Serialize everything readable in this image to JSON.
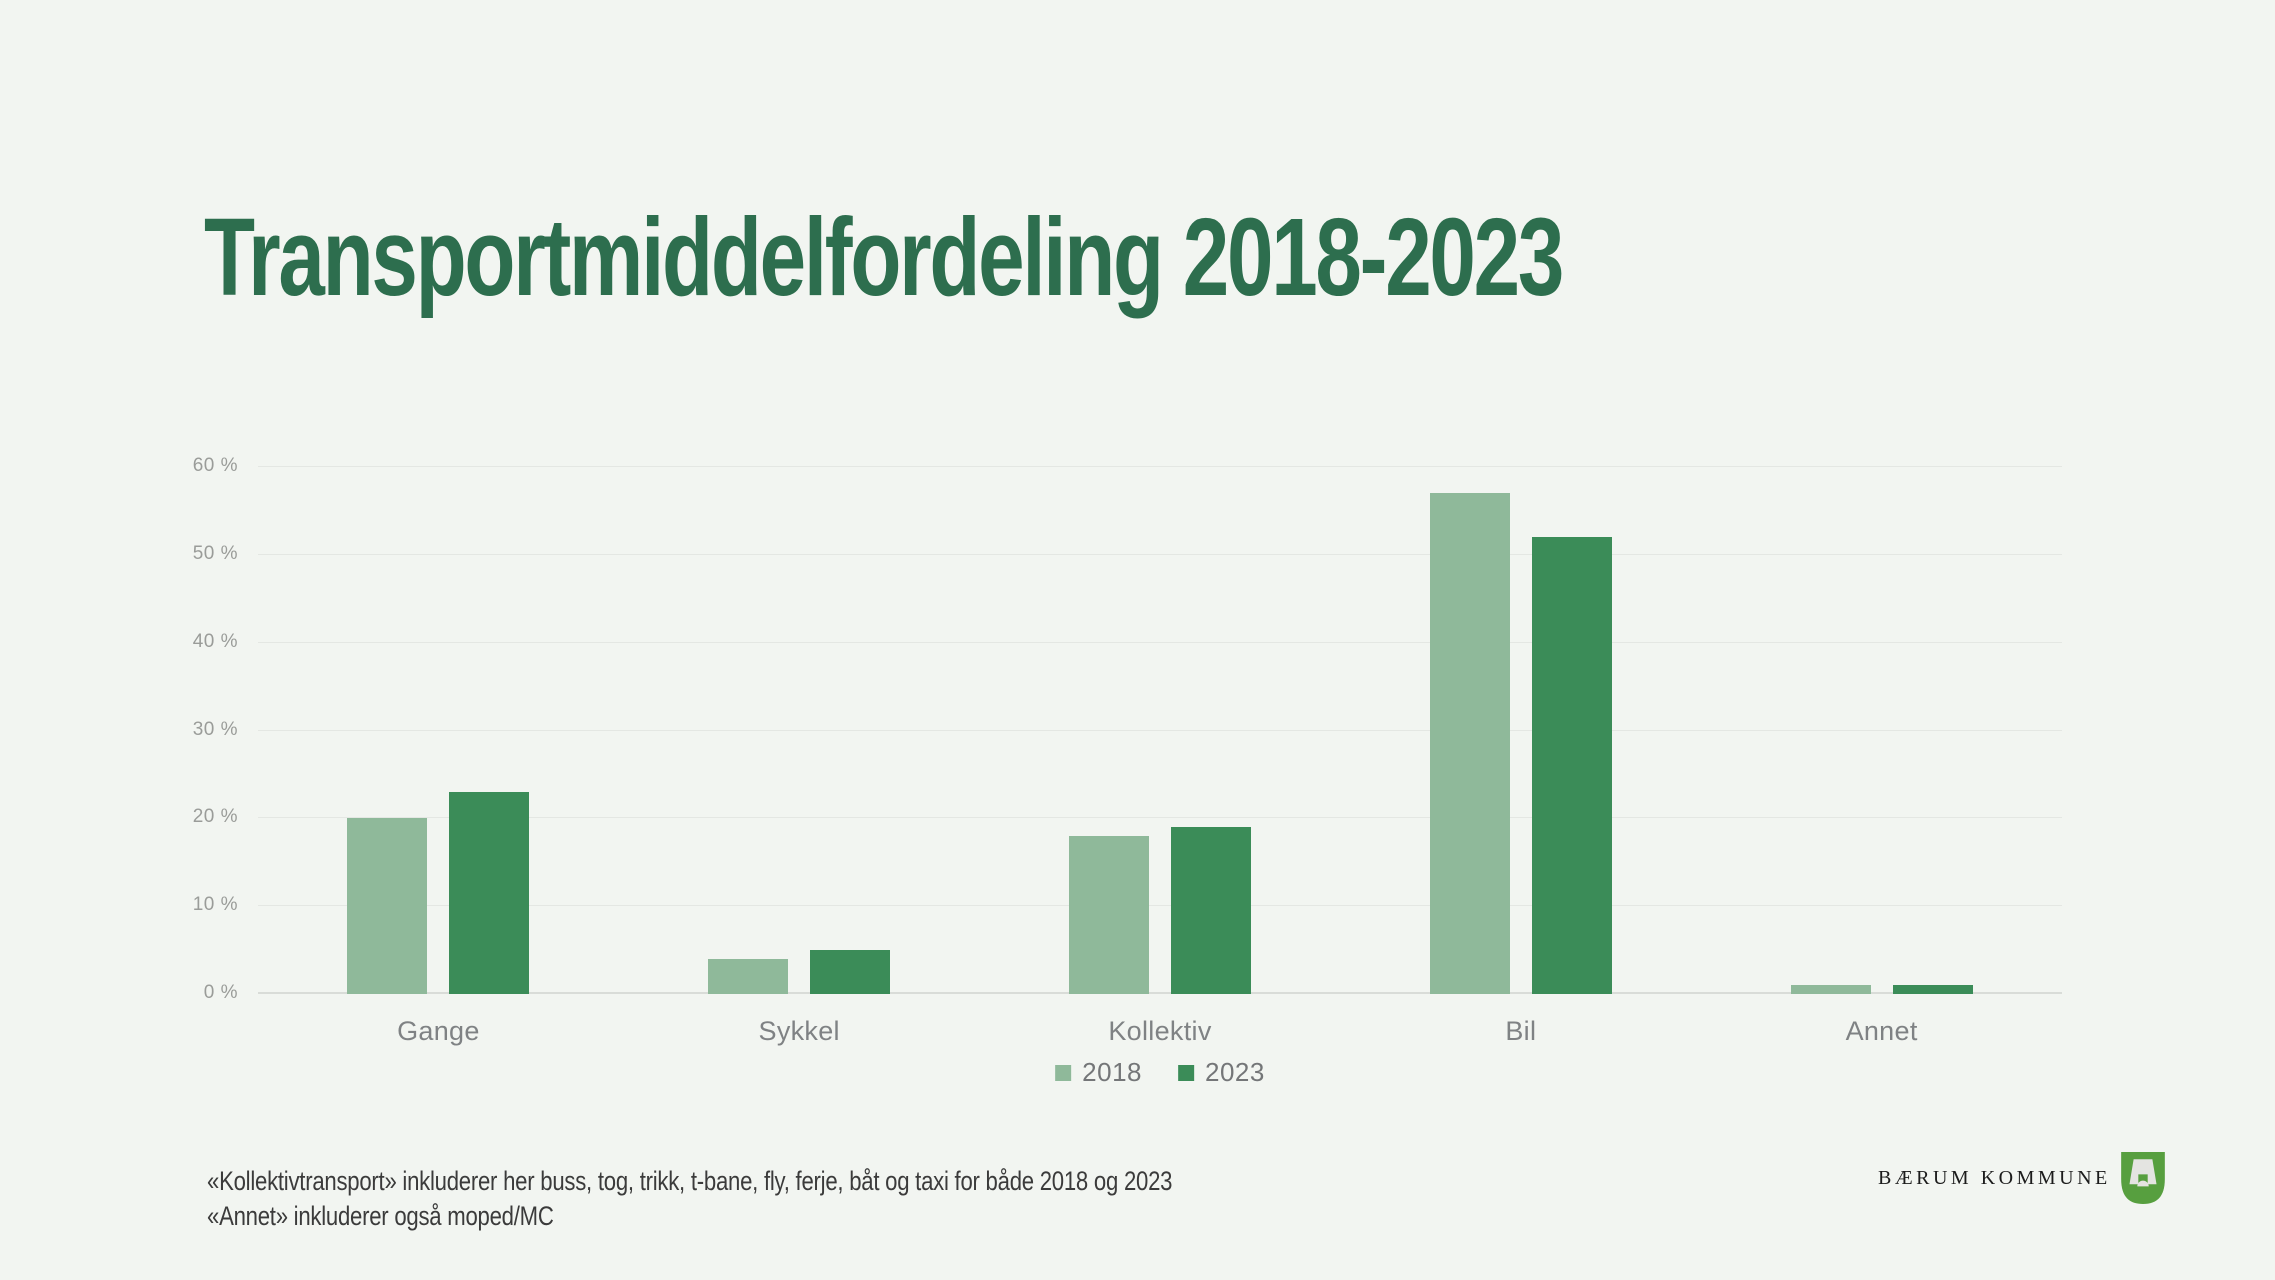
{
  "page": {
    "title": "Transportmiddelfordeling 2018-2023",
    "footnotes": {
      "line1": "«Kollektivtransport» inkluderer her buss, tog, trikk, t-bane, fly, ferje, båt og taxi for både 2018 og 2023",
      "line2": "«Annet» inkluderer også moped/MC"
    },
    "logo": {
      "text": "BÆRUM KOMMUNE"
    }
  },
  "colors": {
    "background": "#f2f5f1",
    "title": "#2d6e4e",
    "series_2018": "#8fb99a",
    "series_2023": "#3b8c58",
    "gridline": "#e4e7e3",
    "baseline": "#d9dcd8",
    "axis_tick_text": "#9a9c99",
    "category_text": "#7f8284",
    "legend_text": "#747678",
    "footnote_text": "#3b3b3b",
    "logo_shield_green": "#579f3f",
    "logo_kiln_gray": "#e4e4e1"
  },
  "chart_data": {
    "type": "bar",
    "title": "Transportmiddelfordeling 2018-2023",
    "categories": [
      "Gange",
      "Sykkel",
      "Kollektiv",
      "Bil",
      "Annet"
    ],
    "series": [
      {
        "name": "2018",
        "color": "#8fb99a",
        "values": [
          20,
          4,
          18,
          57,
          1
        ]
      },
      {
        "name": "2023",
        "color": "#3b8c58",
        "values": [
          23,
          5,
          19,
          52,
          1
        ]
      }
    ],
    "unit": "%",
    "xlabel": "",
    "ylabel": "",
    "ylim": [
      0,
      60
    ],
    "y_tick_labels": [
      "0 %",
      "10 %",
      "20 %",
      "30 %",
      "40 %",
      "50 %",
      "60 %"
    ],
    "grid": true,
    "legend_position": "bottom"
  }
}
